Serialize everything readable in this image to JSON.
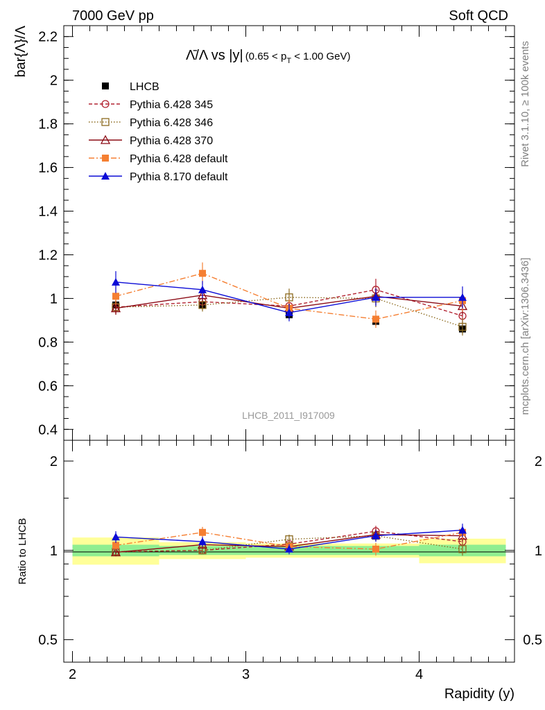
{
  "header": {
    "left_label": "7000 GeV pp",
    "right_label": "Soft QCD"
  },
  "side_labels": {
    "rivet": "Rivet 3.1.10, ≥ 100k events",
    "mcplots": "mcplots.cern.ch [arXiv:1306.3436]"
  },
  "watermark": "LHCB_2011_I917009",
  "chart_data": [
    {
      "type": "line",
      "panel": "main",
      "title_main": "Λ̄/Λ vs |y|",
      "title_sub": "(0.65 < p",
      "title_sub_index": "T",
      "title_sub_end": " < 1.00 GeV)",
      "xlabel": "Rapidity (y)",
      "ylabel": "bar{Λ}/Λ",
      "xlim": [
        1.95,
        4.55
      ],
      "ylim": [
        0.35,
        2.25
      ],
      "yticks": [
        0.4,
        0.6,
        0.8,
        1,
        1.2,
        1.4,
        1.6,
        1.8,
        2,
        2.2
      ],
      "ytick_labels": [
        "0.4",
        "0.6",
        "0.8",
        "1",
        "1.2",
        "1.4",
        "1.6",
        "1.8",
        "2",
        "2.2"
      ],
      "x": [
        2.25,
        2.75,
        3.25,
        3.75,
        4.25
      ],
      "legend_position": "top-left",
      "series": [
        {
          "name": "LHCB",
          "color": "#000000",
          "marker": "square-filled",
          "line": "none",
          "values": [
            0.97,
            0.97,
            0.925,
            0.895,
            0.86
          ],
          "errors": [
            0.02,
            0.02,
            0.02,
            0.02,
            0.02
          ]
        },
        {
          "name": "Pythia 6.428 345",
          "color": "#b22230",
          "marker": "circle-open",
          "line": "dashed",
          "values": [
            0.96,
            0.985,
            0.965,
            1.04,
            0.92
          ],
          "errors": [
            0.03,
            0.03,
            0.03,
            0.05,
            0.04
          ]
        },
        {
          "name": "Pythia 6.428 346",
          "color": "#8c6a1f",
          "marker": "square-open",
          "line": "dotted",
          "values": [
            0.96,
            0.97,
            1.005,
            1.0,
            0.87
          ],
          "errors": [
            0.03,
            0.03,
            0.04,
            0.04,
            0.04
          ]
        },
        {
          "name": "Pythia 6.428 370",
          "color": "#8b0a14",
          "marker": "triangle-open",
          "line": "solid",
          "values": [
            0.955,
            1.015,
            0.955,
            1.01,
            0.965
          ],
          "errors": [
            0.03,
            0.03,
            0.03,
            0.04,
            0.04
          ]
        },
        {
          "name": "Pythia 6.428 default",
          "color": "#f57f32",
          "marker": "square-filled",
          "line": "dashdot",
          "values": [
            1.01,
            1.115,
            0.955,
            0.905,
            0.99
          ],
          "errors": [
            0.04,
            0.05,
            0.04,
            0.04,
            0.05
          ]
        },
        {
          "name": "Pythia 8.170 default",
          "color": "#0b0bd6",
          "marker": "triangle-filled",
          "line": "solid",
          "values": [
            1.075,
            1.04,
            0.935,
            1.005,
            1.005
          ],
          "errors": [
            0.05,
            0.04,
            0.04,
            0.04,
            0.05
          ]
        }
      ]
    },
    {
      "type": "line",
      "panel": "ratio",
      "ylabel": "Ratio to LHCB",
      "xlabel": "Rapidity (y)",
      "xlim": [
        1.95,
        4.55
      ],
      "ylim": [
        0.42,
        2.35
      ],
      "log_y": true,
      "yticks": [
        0.5,
        1,
        2
      ],
      "ytick_labels": [
        "0.5",
        "1",
        "2"
      ],
      "xticks": [
        2,
        3,
        4
      ],
      "xtick_labels": [
        "2",
        "3",
        "4"
      ],
      "x": [
        2.25,
        2.75,
        3.25,
        3.75,
        4.25
      ],
      "bins": [
        [
          2.0,
          2.5
        ],
        [
          2.5,
          3.0
        ],
        [
          3.0,
          3.5
        ],
        [
          3.5,
          4.0
        ],
        [
          4.0,
          4.5
        ]
      ],
      "band_inner": [
        [
          0.955,
          1.045
        ],
        [
          0.965,
          1.035
        ],
        [
          0.965,
          1.035
        ],
        [
          0.965,
          1.035
        ],
        [
          0.955,
          1.045
        ]
      ],
      "band_outer": [
        [
          0.895,
          1.105
        ],
        [
          0.935,
          1.065
        ],
        [
          0.945,
          1.055
        ],
        [
          0.945,
          1.055
        ],
        [
          0.905,
          1.095
        ]
      ],
      "band_inner_color": "#90ee90",
      "band_outer_color": "#ffff99",
      "series": [
        {
          "name": "Pythia 6.428 345",
          "color": "#b22230",
          "marker": "circle-open",
          "line": "dashed",
          "values": [
            0.99,
            1.0,
            1.05,
            1.16,
            1.07
          ],
          "errors": [
            0.03,
            0.03,
            0.04,
            0.05,
            0.05
          ]
        },
        {
          "name": "Pythia 6.428 346",
          "color": "#8c6a1f",
          "marker": "square-open",
          "line": "dotted",
          "values": [
            0.99,
            1.0,
            1.09,
            1.12,
            1.01
          ],
          "errors": [
            0.03,
            0.03,
            0.04,
            0.05,
            0.05
          ]
        },
        {
          "name": "Pythia 6.428 370",
          "color": "#8b0a14",
          "marker": "triangle-open",
          "line": "solid",
          "values": [
            0.985,
            1.045,
            1.03,
            1.13,
            1.12
          ],
          "errors": [
            0.03,
            0.03,
            0.04,
            0.05,
            0.05
          ]
        },
        {
          "name": "Pythia 6.428 default",
          "color": "#f57f32",
          "marker": "square-filled",
          "line": "dashdot",
          "values": [
            1.04,
            1.15,
            1.03,
            1.01,
            1.15
          ],
          "errors": [
            0.04,
            0.05,
            0.04,
            0.05,
            0.06
          ]
        },
        {
          "name": "Pythia 8.170 default",
          "color": "#0b0bd6",
          "marker": "triangle-filled",
          "line": "solid",
          "values": [
            1.11,
            1.07,
            1.01,
            1.12,
            1.17
          ],
          "errors": [
            0.05,
            0.04,
            0.04,
            0.05,
            0.06
          ]
        }
      ]
    }
  ]
}
